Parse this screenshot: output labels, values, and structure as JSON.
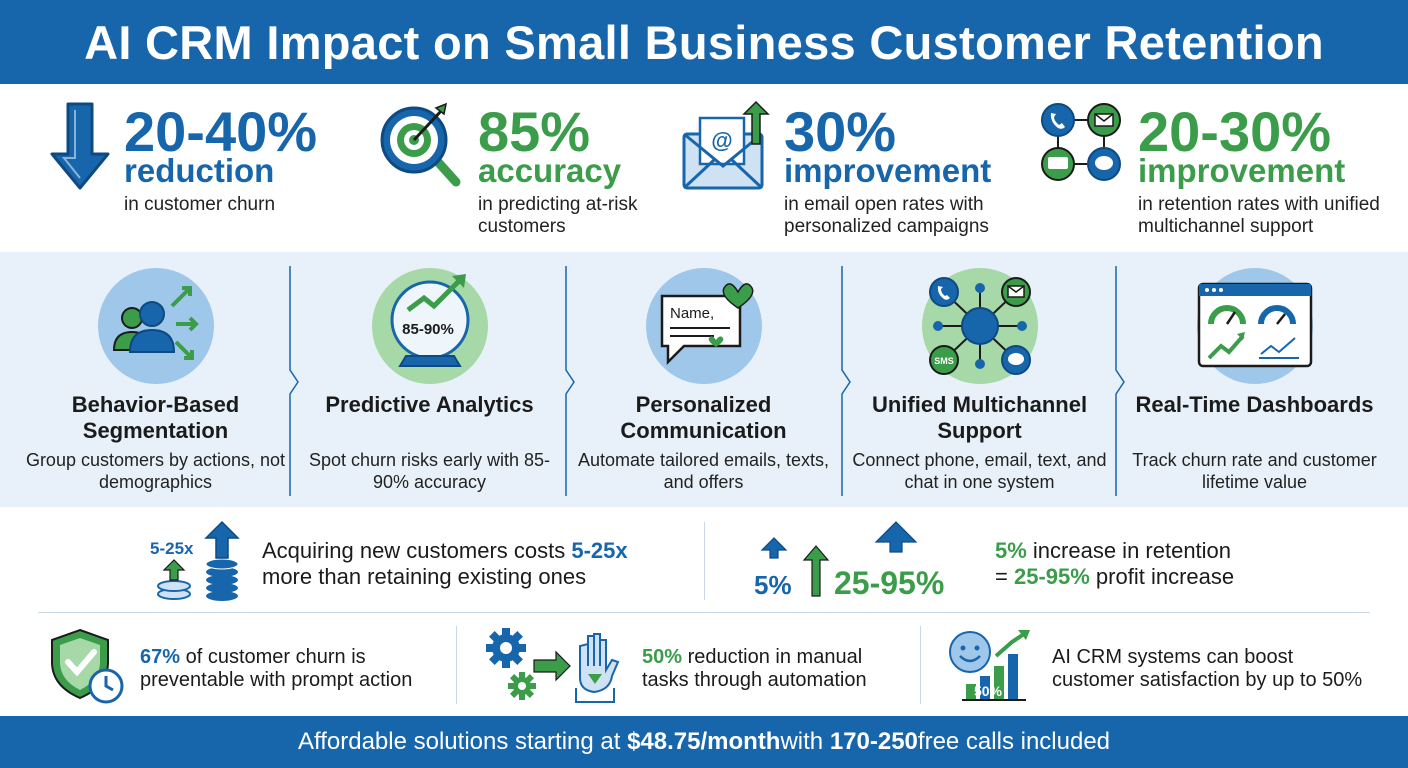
{
  "header": {
    "title": "AI CRM Impact on Small Business Customer Retention"
  },
  "stats": [
    {
      "value": "20-40%",
      "unit": "reduction",
      "desc": "in customer churn",
      "icon": "down-arrow-icon",
      "color": "#1766ac"
    },
    {
      "value": "85%",
      "unit": "accuracy",
      "desc": "in predicting at-risk customers",
      "icon": "target-magnifier-icon",
      "color": "#3b9c4a"
    },
    {
      "value": "30%",
      "unit": "improvement",
      "desc": "in email open rates with personalized campaigns",
      "icon": "email-icon",
      "color": "#1766ac"
    },
    {
      "value": "20-30%",
      "unit": "improvement",
      "desc": "in retention rates with unified multichannel support",
      "icon": "multichannel-icon",
      "color": "#3b9c4a"
    }
  ],
  "features": [
    {
      "title": "Behavior-Based Segmentation",
      "desc": "Group customers by actions, not demographics",
      "icon": "segmentation-icon"
    },
    {
      "title": "Predictive Analytics",
      "desc": "Spot churn risks early with 85-90% accuracy",
      "icon": "crystal-ball-icon",
      "badge": "85-90%"
    },
    {
      "title": "Personalized Communication",
      "desc": "Automate tailored emails, texts, and offers",
      "icon": "chat-bubble-icon",
      "badge": "Name,"
    },
    {
      "title": "Unified Multichannel Support",
      "desc": "Connect phone, email, text, and chat in one system",
      "icon": "hub-icon",
      "badge": "SMS"
    },
    {
      "title": "Real-Time Dashboards",
      "desc": "Track churn rate and customer lifetime value",
      "icon": "dashboard-icon"
    }
  ],
  "facts": {
    "acquire": {
      "badge": "5-25x",
      "pre": "Acquiring new customers costs ",
      "hl": "5-25x",
      "post": "more than retaining existing ones"
    },
    "profit": {
      "icon_small": "5%",
      "icon_big": "25-95%",
      "hl1": "5%",
      "text1": " increase in retention",
      "pre2": "= ",
      "hl2": "25-95%",
      "text2": " profit increase"
    }
  },
  "bottom": [
    {
      "hl": "67%",
      "text1": " of customer churn is",
      "text2": "preventable with prompt action",
      "icon": "shield-check-icon"
    },
    {
      "hl": "50%",
      "text1": " reduction in manual",
      "text2": "tasks through automation",
      "icon": "gears-hand-icon"
    },
    {
      "text1": "AI CRM systems can boost",
      "text2": "customer satisfaction by up to 50%",
      "icon": "smiley-chart-icon",
      "badge": "50%"
    }
  ],
  "footer": {
    "pre": "Affordable solutions starting at ",
    "price": "$48.75/month",
    "mid": " with ",
    "calls": "170-250",
    "post": " free calls included"
  },
  "colors": {
    "blue": "#1766ac",
    "green": "#3b9c4a",
    "light_blue_bg": "#e8f1f9"
  }
}
